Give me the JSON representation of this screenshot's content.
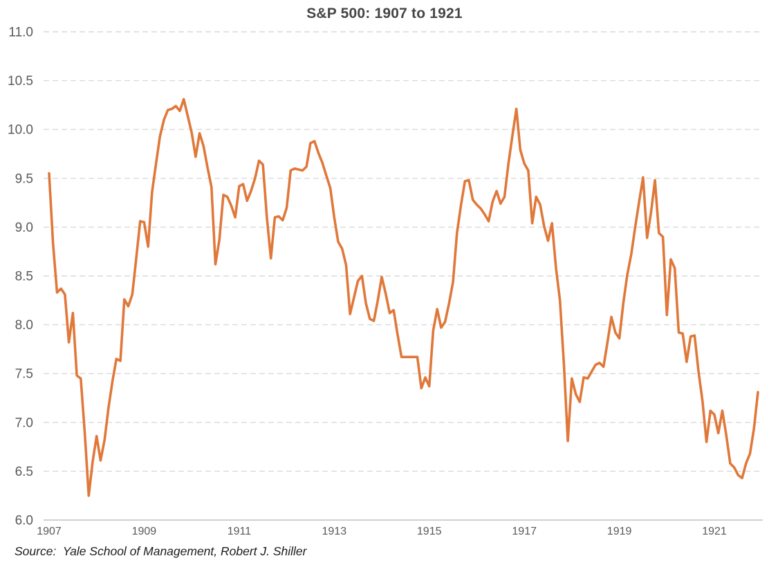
{
  "title": "S&P 500: 1907 to 1921",
  "source_note": "Source:  Yale School of Management, Robert J. Shiller",
  "chart_data": {
    "type": "line",
    "title": "S&P 500: 1907 to 1921",
    "xlabel": "",
    "ylabel": "",
    "frequency": "monthly",
    "x_start_year": 1907,
    "x_end_year": 1921,
    "ylim": [
      6.0,
      11.0
    ],
    "y_tick_labels": [
      "6.0",
      "6.5",
      "7.0",
      "7.5",
      "8.0",
      "8.5",
      "9.0",
      "9.5",
      "10.0",
      "10.5",
      "11.0"
    ],
    "x_tick_labels": [
      "1907",
      "1909",
      "1911",
      "1913",
      "1915",
      "1917",
      "1919",
      "1921"
    ],
    "grid": "horizontal-dashed",
    "legend": "none",
    "source": "Source:  Yale School of Management, Robert J. Shiller",
    "series": [
      {
        "name": "S&P 500",
        "color": "#E0783A",
        "values": [
          9.55,
          8.83,
          8.33,
          8.37,
          8.31,
          7.82,
          8.12,
          7.48,
          7.45,
          6.9,
          6.25,
          6.6,
          6.86,
          6.61,
          6.82,
          7.15,
          7.42,
          7.65,
          7.63,
          8.26,
          8.19,
          8.31,
          8.68,
          9.06,
          9.05,
          8.8,
          9.36,
          9.65,
          9.93,
          10.1,
          10.2,
          10.21,
          10.24,
          10.19,
          10.31,
          10.14,
          9.97,
          9.72,
          9.96,
          9.83,
          9.61,
          9.41,
          8.62,
          8.87,
          9.33,
          9.31,
          9.22,
          9.1,
          9.42,
          9.44,
          9.27,
          9.37,
          9.5,
          9.68,
          9.64,
          9.1,
          8.68,
          9.1,
          9.11,
          9.07,
          9.2,
          9.58,
          9.6,
          9.59,
          9.58,
          9.62,
          9.86,
          9.88,
          9.76,
          9.66,
          9.53,
          9.4,
          9.1,
          8.85,
          8.78,
          8.61,
          8.11,
          8.28,
          8.45,
          8.5,
          8.22,
          8.06,
          8.04,
          8.25,
          8.49,
          8.32,
          8.12,
          8.15,
          7.9,
          7.67,
          7.67,
          7.67,
          7.67,
          7.67,
          7.35,
          7.46,
          7.37,
          7.94,
          8.16,
          7.97,
          8.03,
          8.22,
          8.44,
          8.94,
          9.22,
          9.47,
          9.48,
          9.28,
          9.23,
          9.19,
          9.13,
          9.06,
          9.26,
          9.37,
          9.24,
          9.31,
          9.65,
          9.94,
          10.21,
          9.79,
          9.65,
          9.58,
          9.04,
          9.31,
          9.23,
          9.01,
          8.86,
          9.04,
          8.58,
          8.25,
          7.6,
          6.81,
          7.45,
          7.29,
          7.21,
          7.46,
          7.45,
          7.52,
          7.59,
          7.61,
          7.57,
          7.82,
          8.08,
          7.92,
          7.86,
          8.22,
          8.51,
          8.72,
          9.0,
          9.26,
          9.51,
          8.89,
          9.15,
          9.48,
          8.94,
          8.9,
          8.1,
          8.67,
          8.58,
          7.92,
          7.91,
          7.62,
          7.88,
          7.89,
          7.52,
          7.22,
          6.8,
          7.12,
          7.08,
          6.89,
          7.12,
          6.87,
          6.58,
          6.54,
          6.46,
          6.43,
          6.58,
          6.68,
          6.94,
          7.31
        ]
      }
    ]
  },
  "colors": {
    "line": "#E0783A",
    "grid_dashed": "#D9D9D9",
    "axis_line": "#C9C9C9",
    "tick_text": "#595959",
    "title_text": "#454545",
    "source_text": "#1C1C1C",
    "background": "#FFFFFF"
  }
}
